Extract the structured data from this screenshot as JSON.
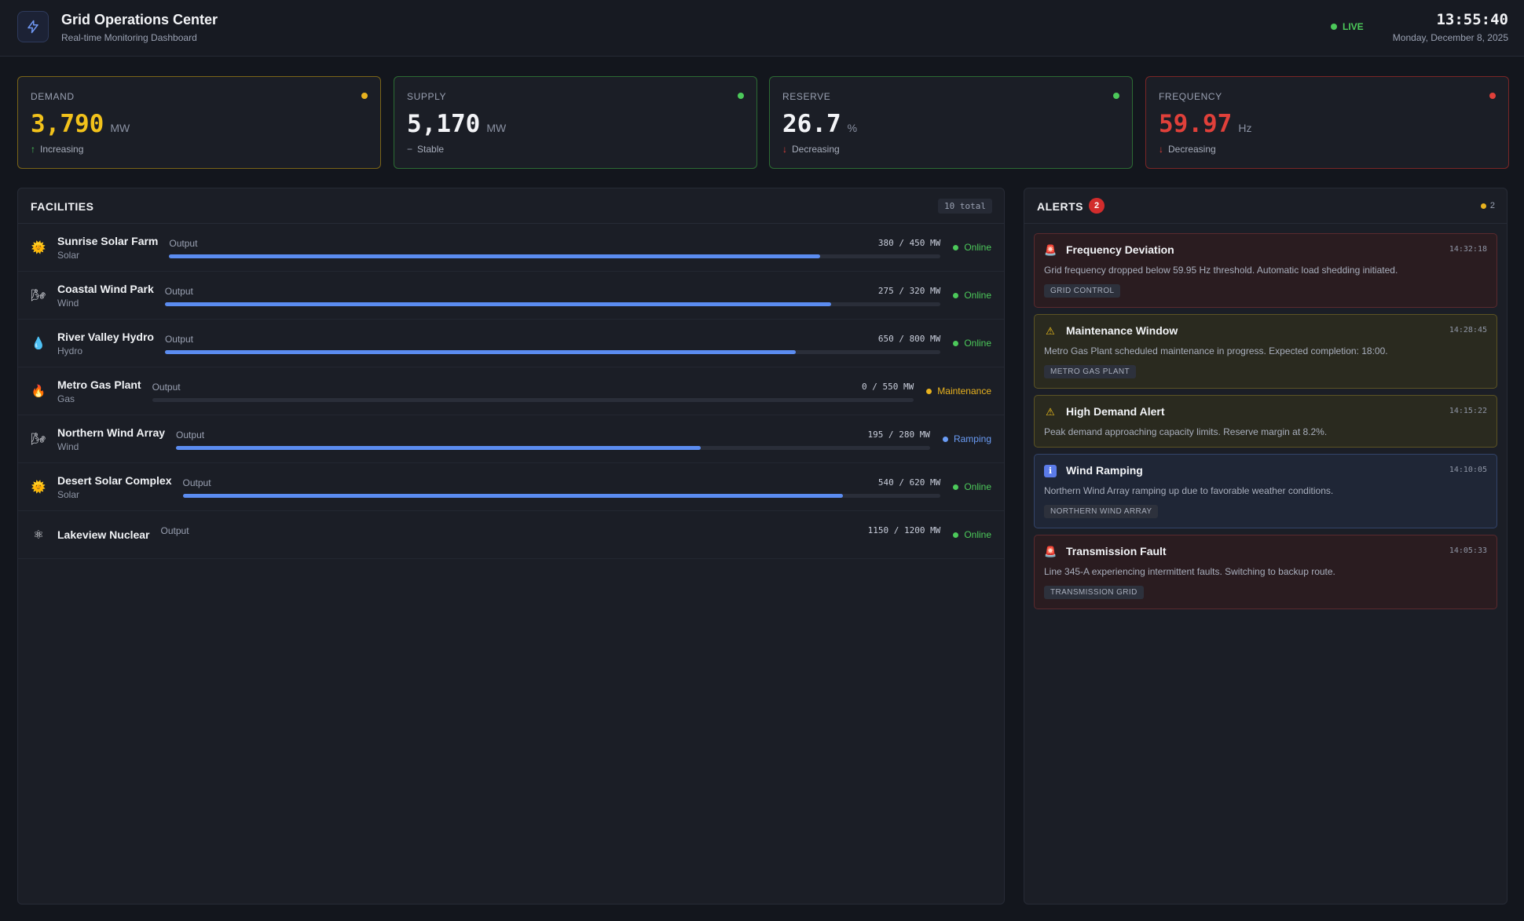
{
  "header": {
    "title": "Grid Operations Center",
    "subtitle": "Real-time Monitoring Dashboard",
    "live_label": "LIVE",
    "time": "13:55:40",
    "date": "Monday, December 8, 2025"
  },
  "metrics": [
    {
      "label": "DEMAND",
      "value": "3,790",
      "unit": "MW",
      "trend_arrow": "↑",
      "trend": "Increasing",
      "color": "#f2c21b",
      "dot": "#e8b21f",
      "border": "#7a6418",
      "arrow_color": "#4cc95a"
    },
    {
      "label": "SUPPLY",
      "value": "5,170",
      "unit": "MW",
      "trend_arrow": "−",
      "trend": "Stable",
      "color": "#f3f4f7",
      "dot": "#4cc95a",
      "border": "#2c6b33",
      "arrow_color": "#9aa1b2"
    },
    {
      "label": "RESERVE",
      "value": "26.7",
      "unit": "%",
      "trend_arrow": "↓",
      "trend": "Decreasing",
      "color": "#f3f4f7",
      "dot": "#4cc95a",
      "border": "#2c6b33",
      "arrow_color": "#e0403a"
    },
    {
      "label": "FREQUENCY",
      "value": "59.97",
      "unit": "Hz",
      "trend_arrow": "↓",
      "trend": "Decreasing",
      "color": "#e0403a",
      "dot": "#e0403a",
      "border": "#7a2626",
      "arrow_color": "#e0403a"
    }
  ],
  "facilities_panel": {
    "title": "FACILITIES",
    "total": "10 total",
    "output_label": "Output",
    "items": [
      {
        "name": "Sunrise Solar Farm",
        "type": "Solar",
        "icon": "sun-icon",
        "glyph": "🌞",
        "output": "380 / 450 MW",
        "fraction": 0.844,
        "status": "Online",
        "status_color": "#4cc95a"
      },
      {
        "name": "Coastal Wind Park",
        "type": "Wind",
        "icon": "wind-icon",
        "glyph": "🌬",
        "output": "275 / 320 MW",
        "fraction": 0.859,
        "status": "Online",
        "status_color": "#4cc95a"
      },
      {
        "name": "River Valley Hydro",
        "type": "Hydro",
        "icon": "water-drop-icon",
        "glyph": "💧",
        "output": "650 / 800 MW",
        "fraction": 0.8125,
        "status": "Online",
        "status_color": "#4cc95a"
      },
      {
        "name": "Metro Gas Plant",
        "type": "Gas",
        "icon": "flame-icon",
        "glyph": "🔥",
        "output": "0 / 550 MW",
        "fraction": 0,
        "status": "Maintenance",
        "status_color": "#e8b21f"
      },
      {
        "name": "Northern Wind Array",
        "type": "Wind",
        "icon": "wind-icon",
        "glyph": "🌬",
        "output": "195 / 280 MW",
        "fraction": 0.696,
        "status": "Ramping",
        "status_color": "#6a9cf5"
      },
      {
        "name": "Desert Solar Complex",
        "type": "Solar",
        "icon": "sun-icon",
        "glyph": "🌞",
        "output": "540 / 620 MW",
        "fraction": 0.871,
        "status": "Online",
        "status_color": "#4cc95a"
      },
      {
        "name": "Lakeview Nuclear",
        "type": "",
        "icon": "atom-icon",
        "glyph": "⚛",
        "output": "1150 / 1200 MW",
        "fraction": null,
        "status": "Online",
        "status_color": "#4cc95a"
      }
    ]
  },
  "alerts_panel": {
    "title": "ALERTS",
    "count": "2",
    "mini_count": "2",
    "items": [
      {
        "severity": "critical",
        "icon": "siren-icon",
        "glyph": "🚨",
        "title": "Frequency Deviation",
        "time": "14:32:18",
        "message": "Grid frequency dropped below 59.95 Hz threshold. Automatic load shedding initiated.",
        "tag": "GRID CONTROL"
      },
      {
        "severity": "warning",
        "icon": "warning-icon",
        "glyph": "⚠",
        "title": "Maintenance Window",
        "time": "14:28:45",
        "message": "Metro Gas Plant scheduled maintenance in progress. Expected completion: 18:00.",
        "tag": "METRO GAS PLANT"
      },
      {
        "severity": "warning",
        "icon": "warning-icon",
        "glyph": "⚠",
        "title": "High Demand Alert",
        "time": "14:15:22",
        "message": "Peak demand approaching capacity limits. Reserve margin at 8.2%.",
        "tag": ""
      },
      {
        "severity": "info",
        "icon": "info-icon",
        "glyph": "ℹ",
        "title": "Wind Ramping",
        "time": "14:10:05",
        "message": "Northern Wind Array ramping up due to favorable weather conditions.",
        "tag": "NORTHERN WIND ARRAY"
      },
      {
        "severity": "critical",
        "icon": "siren-icon",
        "glyph": "🚨",
        "title": "Transmission Fault",
        "time": "14:05:33",
        "message": "Line 345-A experiencing intermittent faults. Switching to backup route.",
        "tag": "TRANSMISSION GRID"
      }
    ]
  }
}
